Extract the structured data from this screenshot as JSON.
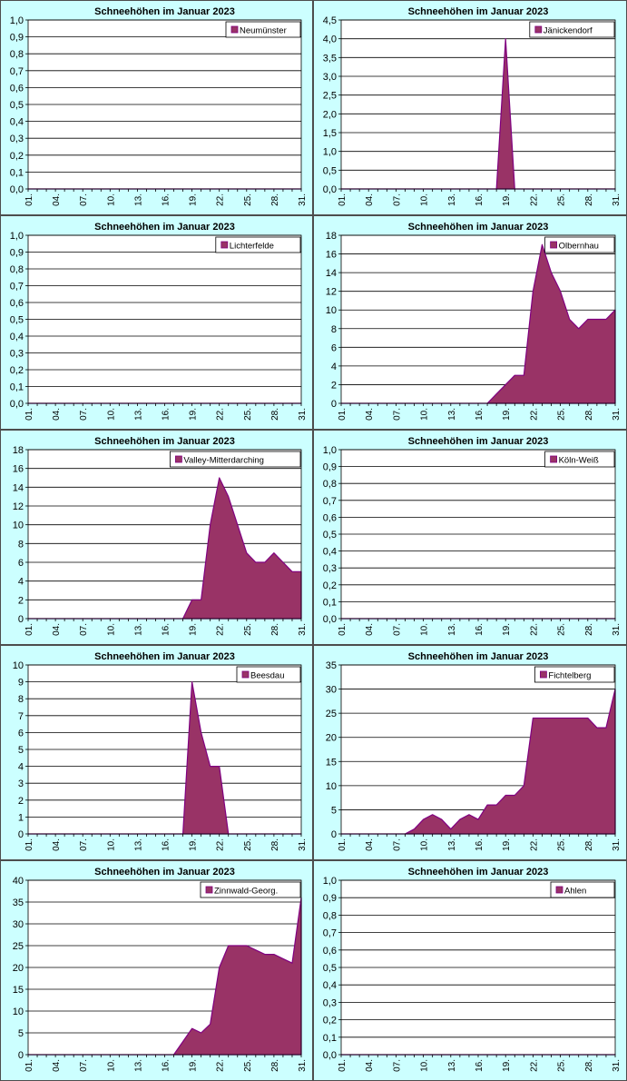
{
  "colors": {
    "panel_bg": "#ccffff",
    "plot_bg": "#ffffff",
    "area_fill": "#993366",
    "area_stroke": "#800080",
    "gridline": "#000000"
  },
  "chart_data": [
    {
      "type": "area",
      "title": "Schneehöhen im Januar 2023",
      "xlabel": "",
      "ylabel": "",
      "legend_position": "top-right",
      "x_ticks": [
        "01.",
        "04.",
        "07.",
        "10.",
        "13.",
        "16.",
        "19.",
        "22.",
        "25.",
        "28.",
        "31."
      ],
      "ylim": [
        0,
        1
      ],
      "y_step": 0.1,
      "series": [
        {
          "name": "Neumünster",
          "values": [
            0,
            0,
            0,
            0,
            0,
            0,
            0,
            0,
            0,
            0,
            0,
            0,
            0,
            0,
            0,
            0,
            0,
            0,
            0,
            0,
            0,
            0,
            0,
            0,
            0,
            0,
            0,
            0,
            0,
            0,
            0
          ]
        }
      ]
    },
    {
      "type": "area",
      "title": "Schneehöhen im Januar 2023",
      "xlabel": "",
      "ylabel": "",
      "legend_position": "top-right",
      "x_ticks": [
        "01.",
        "04.",
        "07.",
        "10.",
        "13.",
        "16.",
        "19.",
        "22.",
        "25.",
        "28.",
        "31."
      ],
      "ylim": [
        0,
        4.5
      ],
      "y_step": 0.5,
      "series": [
        {
          "name": "Jänickendorf",
          "values": [
            0,
            0,
            0,
            0,
            0,
            0,
            0,
            0,
            0,
            0,
            0,
            0,
            0,
            0,
            0,
            0,
            0,
            0,
            4,
            0,
            0,
            0,
            0,
            0,
            0,
            0,
            0,
            0,
            0,
            0,
            0
          ]
        }
      ]
    },
    {
      "type": "area",
      "title": "Schneehöhen im Januar 2023",
      "xlabel": "",
      "ylabel": "",
      "legend_position": "top-right",
      "x_ticks": [
        "01.",
        "04.",
        "07.",
        "10.",
        "13.",
        "16.",
        "19.",
        "22.",
        "25.",
        "28.",
        "31."
      ],
      "ylim": [
        0,
        1
      ],
      "y_step": 0.1,
      "series": [
        {
          "name": "Lichterfelde",
          "values": [
            0,
            0,
            0,
            0,
            0,
            0,
            0,
            0,
            0,
            0,
            0,
            0,
            0,
            0,
            0,
            0,
            0,
            0,
            0,
            0,
            0,
            0,
            0,
            0,
            0,
            0,
            0,
            0,
            0,
            0,
            0
          ]
        }
      ]
    },
    {
      "type": "area",
      "title": "Schneehöhen im Januar 2023",
      "xlabel": "",
      "ylabel": "",
      "legend_position": "top-right",
      "x_ticks": [
        "01.",
        "04.",
        "07.",
        "10.",
        "13.",
        "16.",
        "19.",
        "22.",
        "25.",
        "28.",
        "31."
      ],
      "ylim": [
        0,
        18
      ],
      "y_step": 2,
      "series": [
        {
          "name": "Olbernhau",
          "values": [
            0,
            0,
            0,
            0,
            0,
            0,
            0,
            0,
            0,
            0,
            0,
            0,
            0,
            0,
            0,
            0,
            0,
            1,
            2,
            3,
            3,
            12,
            17,
            14,
            12,
            9,
            8,
            9,
            9,
            9,
            10
          ]
        }
      ]
    },
    {
      "type": "area",
      "title": "Schneehöhen im Januar 2023",
      "xlabel": "",
      "ylabel": "",
      "legend_position": "top-right",
      "x_ticks": [
        "01.",
        "04.",
        "07.",
        "10.",
        "13.",
        "16.",
        "19.",
        "22.",
        "25.",
        "28.",
        "31."
      ],
      "ylim": [
        0,
        18
      ],
      "y_step": 2,
      "series": [
        {
          "name": "Valley-Mitterdarching",
          "values": [
            0,
            0,
            0,
            0,
            0,
            0,
            0,
            0,
            0,
            0,
            0,
            0,
            0,
            0,
            0,
            0,
            0,
            0,
            2,
            2,
            10,
            15,
            13,
            10,
            7,
            6,
            6,
            7,
            6,
            5,
            5
          ]
        }
      ]
    },
    {
      "type": "area",
      "title": "Schneehöhen im Januar 2023",
      "xlabel": "",
      "ylabel": "",
      "legend_position": "top-right",
      "x_ticks": [
        "01.",
        "04.",
        "07.",
        "10.",
        "13.",
        "16.",
        "19.",
        "22.",
        "25.",
        "28.",
        "31."
      ],
      "ylim": [
        0,
        1
      ],
      "y_step": 0.1,
      "series": [
        {
          "name": "Köln-Weiß",
          "values": [
            0,
            0,
            0,
            0,
            0,
            0,
            0,
            0,
            0,
            0,
            0,
            0,
            0,
            0,
            0,
            0,
            0,
            0,
            0,
            0,
            0,
            0,
            0,
            0,
            0,
            0,
            0,
            0,
            0,
            0,
            0
          ]
        }
      ]
    },
    {
      "type": "area",
      "title": "Schneehöhen im Januar 2023",
      "xlabel": "",
      "ylabel": "",
      "legend_position": "top-right",
      "x_ticks": [
        "01.",
        "04.",
        "07.",
        "10.",
        "13.",
        "16.",
        "19.",
        "22.",
        "25.",
        "28.",
        "31."
      ],
      "ylim": [
        0,
        10
      ],
      "y_step": 1,
      "series": [
        {
          "name": "Beesdau",
          "values": [
            0,
            0,
            0,
            0,
            0,
            0,
            0,
            0,
            0,
            0,
            0,
            0,
            0,
            0,
            0,
            0,
            0,
            0,
            9,
            6,
            4,
            4,
            0,
            0,
            0,
            0,
            0,
            0,
            0,
            0,
            0
          ]
        }
      ]
    },
    {
      "type": "area",
      "title": "Schneehöhen im Januar 2023",
      "xlabel": "",
      "ylabel": "",
      "legend_position": "top-right",
      "x_ticks": [
        "01.",
        "04.",
        "07.",
        "10.",
        "13.",
        "16.",
        "19.",
        "22.",
        "25.",
        "28.",
        "31."
      ],
      "ylim": [
        0,
        35
      ],
      "y_step": 5,
      "series": [
        {
          "name": "Fichtelberg",
          "values": [
            0,
            0,
            0,
            0,
            0,
            0,
            0,
            0,
            1,
            3,
            4,
            3,
            1,
            3,
            4,
            3,
            6,
            6,
            8,
            8,
            10,
            24,
            24,
            24,
            24,
            24,
            24,
            24,
            22,
            22,
            30
          ]
        }
      ]
    },
    {
      "type": "area",
      "title": "Schneehöhen im Januar 2023",
      "xlabel": "",
      "ylabel": "",
      "legend_position": "top-right",
      "x_ticks": [
        "01.",
        "04.",
        "07.",
        "10.",
        "13.",
        "16.",
        "19.",
        "22.",
        "25.",
        "28.",
        "31."
      ],
      "ylim": [
        0,
        40
      ],
      "y_step": 5,
      "series": [
        {
          "name": "Zinnwald-Georg.",
          "values": [
            0,
            0,
            0,
            0,
            0,
            0,
            0,
            0,
            0,
            0,
            0,
            0,
            0,
            0,
            0,
            0,
            0,
            3,
            6,
            5,
            7,
            20,
            25,
            25,
            25,
            24,
            23,
            23,
            22,
            21,
            36
          ]
        }
      ]
    },
    {
      "type": "area",
      "title": "Schneehöhen im Januar 2023",
      "xlabel": "",
      "ylabel": "",
      "legend_position": "top-right",
      "x_ticks": [
        "01.",
        "04.",
        "07.",
        "10.",
        "13.",
        "16.",
        "19.",
        "22.",
        "25.",
        "28.",
        "31."
      ],
      "ylim": [
        0,
        1
      ],
      "y_step": 0.1,
      "series": [
        {
          "name": "Ahlen",
          "values": [
            0,
            0,
            0,
            0,
            0,
            0,
            0,
            0,
            0,
            0,
            0,
            0,
            0,
            0,
            0,
            0,
            0,
            0,
            0,
            0,
            0,
            0,
            0,
            0,
            0,
            0,
            0,
            0,
            0,
            0,
            0
          ]
        }
      ]
    }
  ]
}
